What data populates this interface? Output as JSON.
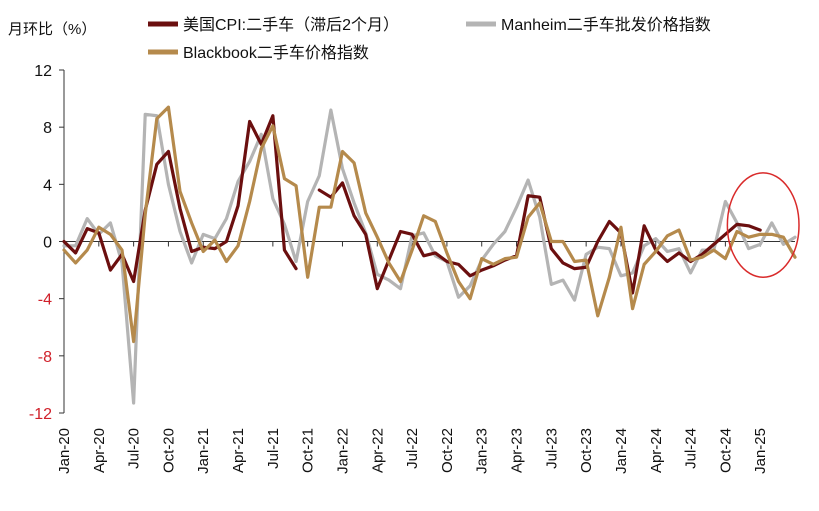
{
  "chart_data": {
    "type": "line",
    "unit_label": "月环比（%）",
    "x": [
      "Jan-20",
      "Feb-20",
      "Mar-20",
      "Apr-20",
      "May-20",
      "Jun-20",
      "Jul-20",
      "Aug-20",
      "Sep-20",
      "Oct-20",
      "Nov-20",
      "Dec-20",
      "Jan-21",
      "Feb-21",
      "Mar-21",
      "Apr-21",
      "May-21",
      "Jun-21",
      "Jul-21",
      "Aug-21",
      "Sep-21",
      "Oct-21",
      "Nov-21",
      "Dec-21",
      "Jan-22",
      "Feb-22",
      "Mar-22",
      "Apr-22",
      "May-22",
      "Jun-22",
      "Jul-22",
      "Aug-22",
      "Sep-22",
      "Oct-22",
      "Nov-22",
      "Dec-22",
      "Jan-23",
      "Feb-23",
      "Mar-23",
      "Apr-23",
      "May-23",
      "Jun-23",
      "Jul-23",
      "Aug-23",
      "Sep-23",
      "Oct-23",
      "Nov-23",
      "Dec-23",
      "Jan-24",
      "Feb-24",
      "Mar-24",
      "Apr-24",
      "May-24",
      "Jun-24",
      "Jul-24",
      "Aug-24",
      "Sep-24",
      "Oct-24",
      "Nov-24",
      "Dec-24",
      "Jan-25",
      "Feb-25",
      "Mar-25",
      "Apr-25"
    ],
    "x_tick_labels": [
      "Jan-20",
      "Apr-20",
      "Jul-20",
      "Oct-20",
      "Jan-21",
      "Apr-21",
      "Jul-21",
      "Oct-21",
      "Jan-22",
      "Apr-22",
      "Jul-22",
      "Oct-22",
      "Jan-23",
      "Apr-23",
      "Jul-23",
      "Oct-23",
      "Jan-24",
      "Apr-24",
      "Jul-24",
      "Oct-24",
      "Jan-25"
    ],
    "y_ticks": [
      12,
      8,
      4,
      0,
      -4,
      -8,
      -12
    ],
    "ylim": [
      -12,
      12
    ],
    "negative_tick_color": "#d0202a",
    "positive_tick_color": "#111111",
    "highlight": {
      "type": "ellipse",
      "color": "#d92b2b",
      "x_range": [
        "Oct-24",
        "Apr-25"
      ],
      "y_range": [
        -2.5,
        4.8
      ]
    },
    "series": [
      {
        "name": "美国CPI:二手车（滞后2个月）",
        "color": "#6b0f0f",
        "values": [
          0.0,
          -0.8,
          0.9,
          0.6,
          -2.0,
          -0.9,
          -2.8,
          2.2,
          5.4,
          6.3,
          2.3,
          -0.7,
          -0.4,
          -0.5,
          0.0,
          2.5,
          8.4,
          6.8,
          8.8,
          -0.6,
          -1.9,
          null,
          3.6,
          3.1,
          4.1,
          1.8,
          0.5,
          -3.3,
          -1.3,
          0.7,
          0.5,
          -1.0,
          -0.8,
          -1.4,
          -1.6,
          -2.4,
          -2.0,
          -1.7,
          -1.3,
          -1.0,
          3.2,
          3.1,
          -0.5,
          -1.5,
          -1.9,
          -1.8,
          0.0,
          1.4,
          0.6,
          -3.6,
          1.1,
          -0.6,
          -1.4,
          -0.8,
          -1.4,
          -0.9,
          -0.2,
          0.5,
          1.2,
          1.1,
          0.8,
          null,
          null,
          null
        ]
      },
      {
        "name": "Manheim二手车批发价格指数",
        "color": "#b4b4b4",
        "values": [
          -0.3,
          -0.3,
          1.6,
          0.5,
          1.3,
          -1.5,
          -11.3,
          8.9,
          8.8,
          4.0,
          0.7,
          -1.5,
          0.5,
          0.2,
          1.6,
          4.2,
          5.6,
          7.5,
          3.0,
          1.2,
          -1.4,
          2.8,
          4.6,
          9.2,
          5.1,
          2.7,
          0.6,
          -2.3,
          -2.7,
          -3.3,
          0.4,
          0.6,
          -1.0,
          -1.4,
          -3.9,
          -3.1,
          -1.3,
          -0.2,
          0.7,
          2.4,
          4.3,
          1.7,
          -3.0,
          -2.7,
          -4.1,
          -0.9,
          -0.4,
          -0.5,
          -2.4,
          -2.2,
          -0.3,
          0.2,
          -0.7,
          -0.5,
          -2.2,
          -0.6,
          -0.6,
          2.8,
          1.3,
          -0.5,
          -0.2,
          1.3,
          -0.2,
          0.3
        ]
      },
      {
        "name": "Blackbook二手车价格指数",
        "color": "#b58a4c",
        "values": [
          -0.6,
          -1.5,
          -0.6,
          1.0,
          0.5,
          -0.6,
          -7.0,
          1.9,
          8.6,
          9.4,
          3.5,
          1.3,
          -0.7,
          0.1,
          -1.4,
          -0.3,
          2.8,
          6.5,
          8.1,
          4.4,
          3.9,
          -2.5,
          2.4,
          2.4,
          6.3,
          5.5,
          2.0,
          0.3,
          -1.5,
          -2.8,
          -0.6,
          1.8,
          1.4,
          -0.8,
          -2.8,
          -4.0,
          -1.2,
          -1.6,
          -1.2,
          -1.1,
          1.7,
          2.7,
          0.0,
          0.0,
          -1.4,
          -1.3,
          -5.2,
          -2.5,
          1.0,
          -4.7,
          -1.6,
          -0.7,
          0.4,
          0.8,
          -1.3,
          -1.1,
          -0.6,
          -1.2,
          0.7,
          0.3,
          0.5,
          0.5,
          0.3,
          -1.1
        ]
      }
    ]
  }
}
